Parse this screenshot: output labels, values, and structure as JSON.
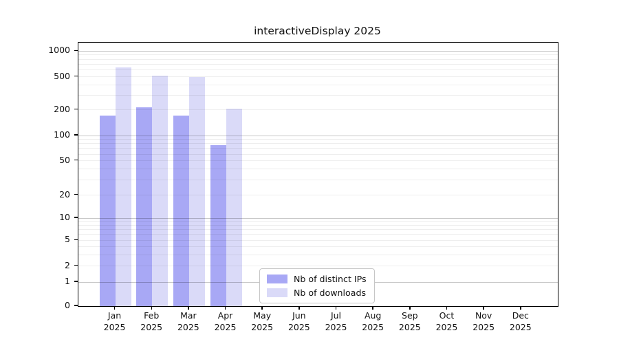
{
  "title": "interactiveDisplay 2025",
  "legend": {
    "items": [
      {
        "label": "Nb of distinct IPs",
        "color": "#a8a8f5"
      },
      {
        "label": "Nb of downloads",
        "color": "#dadaf8"
      }
    ]
  },
  "chart_data": {
    "type": "bar",
    "title": "interactiveDisplay 2025",
    "categories": [
      "Jan",
      "Feb",
      "Mar",
      "Apr",
      "May",
      "Jun",
      "Jul",
      "Aug",
      "Sep",
      "Oct",
      "Nov",
      "Dec"
    ],
    "year_label": "2025",
    "series": [
      {
        "name": "Nb of distinct IPs",
        "color": "#a8a8f5",
        "values": [
          172,
          214,
          171,
          77,
          null,
          null,
          null,
          null,
          null,
          null,
          null,
          null
        ]
      },
      {
        "name": "Nb of downloads",
        "color": "#dadaf8",
        "values": [
          640,
          515,
          500,
          205,
          null,
          null,
          null,
          null,
          null,
          null,
          null,
          null
        ]
      }
    ],
    "ylabel": "",
    "xlabel": "",
    "yscale": "symlog",
    "yticks": [
      0,
      1,
      2,
      5,
      10,
      20,
      50,
      100,
      200,
      500,
      1000
    ],
    "ylim": [
      0,
      1400
    ],
    "grid": "horizontal major and log-minor lines",
    "legend_position": "inside bottom-center"
  }
}
